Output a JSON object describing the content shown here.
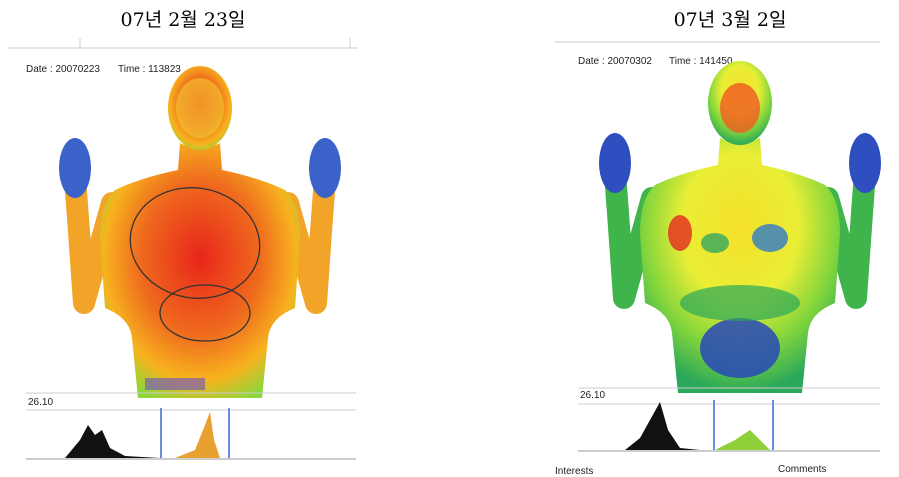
{
  "panels": [
    {
      "heading": "07년 2월 23일",
      "date": "Date : 20070223",
      "time": "Time : 113823",
      "scale": "26.10"
    },
    {
      "heading": "07년 3월 2일",
      "date": "Date : 20070302",
      "time": "Time : 141450",
      "scale": "26.10",
      "footer": [
        "Interests",
        "Comments"
      ]
    }
  ]
}
